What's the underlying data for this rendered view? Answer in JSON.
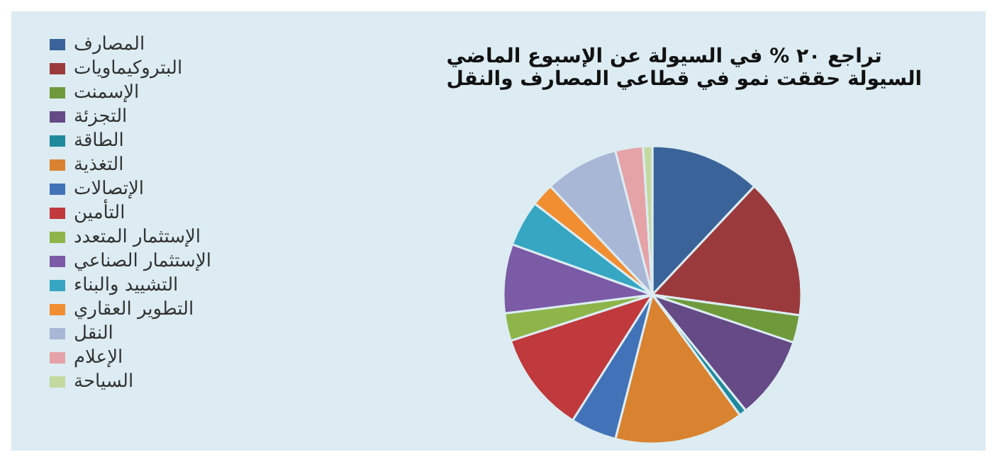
{
  "chart_data": {
    "type": "pie",
    "title": "تراجع ٢٠ % في السيولة عن الإسبوع الماضي",
    "subtitle": "السيولة حققت نمو في قطاعي المصارف والنقل",
    "categories": [
      "المصارف",
      "البتروكيماويات",
      "الإسمنت",
      "التجزئة",
      "الطاقة",
      "التغذية",
      "الإتصالات",
      "التأمين",
      "الإستثمار المتعدد",
      "الإستثمار الصناعي",
      "التشييد والبناء",
      "التطوير العقاري",
      "النقل",
      "الإعلام",
      "السياحة"
    ],
    "values": [
      12,
      15.2,
      3,
      9,
      0.8,
      14,
      5,
      11,
      3,
      7.5,
      5,
      2.5,
      8,
      3,
      1
    ],
    "colors": [
      "#3a6499",
      "#9b3a3c",
      "#6f9a3c",
      "#654a86",
      "#1f8a9c",
      "#d9822f",
      "#4273b8",
      "#c0393d",
      "#8db54a",
      "#7b5aa6",
      "#36a6c2",
      "#f28e32",
      "#a9b7d6",
      "#e5a3a8",
      "#c4d9a0"
    ],
    "legend": "left"
  }
}
